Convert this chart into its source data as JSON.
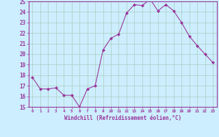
{
  "hours": [
    0,
    1,
    2,
    3,
    4,
    5,
    6,
    7,
    8,
    9,
    10,
    11,
    12,
    13,
    14,
    15,
    16,
    17,
    18,
    19,
    20,
    21,
    22,
    23
  ],
  "values": [
    17.8,
    16.7,
    16.7,
    16.8,
    16.1,
    16.1,
    15.0,
    16.7,
    17.0,
    20.4,
    21.5,
    21.9,
    23.9,
    24.7,
    24.6,
    25.2,
    24.1,
    24.7,
    24.1,
    23.0,
    21.7,
    20.8,
    20.0,
    19.2
  ],
  "line_color": "#993399",
  "marker": "D",
  "marker_size": 2,
  "bg_color": "#cceeff",
  "grid_color": "#aaccbb",
  "xlabel": "Windchill (Refroidissement éolien,°C)",
  "xlabel_color": "#993399",
  "tick_color": "#993399",
  "ylim": [
    15,
    25
  ],
  "xlim_min": -0.5,
  "xlim_max": 23.5,
  "yticks": [
    15,
    16,
    17,
    18,
    19,
    20,
    21,
    22,
    23,
    24,
    25
  ],
  "xticks": [
    0,
    1,
    2,
    3,
    4,
    5,
    6,
    7,
    8,
    9,
    10,
    11,
    12,
    13,
    14,
    15,
    16,
    17,
    18,
    19,
    20,
    21,
    22,
    23
  ],
  "xtick_labels": [
    "0",
    "1",
    "2",
    "3",
    "4",
    "5",
    "6",
    "7",
    "8",
    "9",
    "10",
    "11",
    "12",
    "13",
    "14",
    "15",
    "16",
    "17",
    "18",
    "19",
    "20",
    "21",
    "22",
    "23"
  ]
}
